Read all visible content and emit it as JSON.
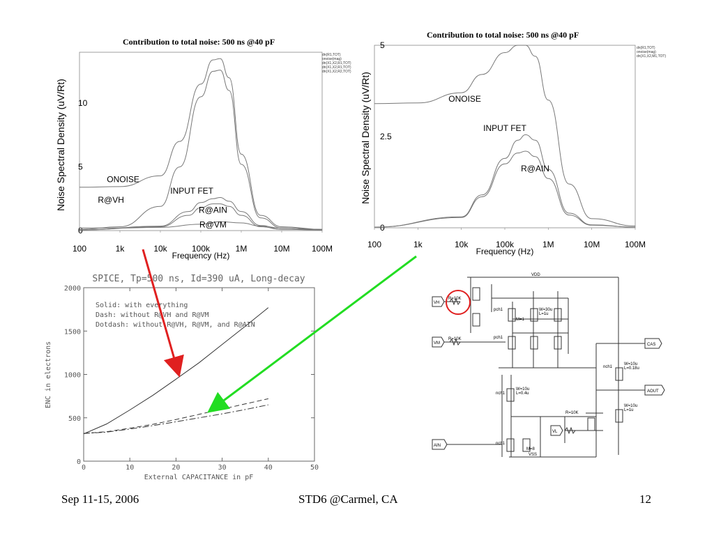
{
  "chart_data": [
    {
      "type": "line",
      "title": "Contribution to total noise: 500 ns @40 pF",
      "xlabel": "Frequency (Hz)",
      "ylabel": "Noise Spectral Density (uV/Rt)",
      "x_scale": "log",
      "xlim": [
        100,
        100000000
      ],
      "ylim": [
        0,
        14
      ],
      "x_ticks": [
        "100",
        "1k",
        "10k",
        "100k",
        "1M",
        "10M",
        "100M"
      ],
      "y_ticks": [
        "0",
        "5",
        "10"
      ],
      "legend": [
        "dn(R1,TOT)",
        "onoise(mag)",
        "dn(X1,X2,R1,TOT)",
        "dn(X1,X2,R1,TOT)",
        "dn(X1,X2,R2,TOT)"
      ],
      "annotations": [
        "ONOISE",
        "R@VH",
        "INPUT FET",
        "R@AIN",
        "R@VM"
      ],
      "series": [
        {
          "label": "ONOISE",
          "x": [
            100,
            1000,
            10000,
            30000,
            100000,
            200000,
            300000,
            500000,
            1000000,
            3000000,
            10000000,
            100000000
          ],
          "y": [
            3.4,
            3.45,
            4.3,
            7.0,
            11.5,
            13.4,
            13.5,
            12.0,
            6.0,
            1.2,
            0.3,
            0.1
          ]
        },
        {
          "label": "R@VH",
          "x": [
            100,
            1000,
            10000,
            30000,
            100000,
            200000,
            300000,
            500000,
            1000000,
            3000000,
            10000000,
            100000000
          ],
          "y": [
            0.1,
            0.3,
            1.9,
            5.0,
            10.5,
            12.5,
            12.6,
            11.0,
            5.2,
            1.0,
            0.2,
            0.05
          ]
        },
        {
          "label": "INPUT FET",
          "x": [
            100,
            10000,
            50000,
            100000,
            200000,
            300000,
            500000,
            1000000,
            3000000,
            10000000,
            100000000
          ],
          "y": [
            0.05,
            0.35,
            1.5,
            2.2,
            2.5,
            2.6,
            2.3,
            1.5,
            0.4,
            0.1,
            0.05
          ]
        },
        {
          "label": "R@AIN",
          "x": [
            100,
            10000,
            50000,
            100000,
            200000,
            300000,
            500000,
            1000000,
            3000000,
            10000000,
            100000000
          ],
          "y": [
            0.05,
            0.3,
            1.2,
            1.8,
            2.1,
            2.1,
            1.9,
            1.2,
            0.3,
            0.1,
            0.05
          ]
        },
        {
          "label": "R@VM",
          "x": [
            100,
            1000,
            10000,
            100000,
            300000,
            1000000,
            3000000,
            10000000,
            100000000
          ],
          "y": [
            0.2,
            0.2,
            0.25,
            0.5,
            0.7,
            0.6,
            0.35,
            0.2,
            0.1
          ]
        }
      ]
    },
    {
      "type": "line",
      "title": "Contribution to total noise: 500 ns @40 pF",
      "xlabel": "Frequency (Hz)",
      "ylabel": "Noise Spectral Density (uV/Rt)",
      "x_scale": "log",
      "xlim": [
        100,
        100000000
      ],
      "ylim": [
        0,
        5
      ],
      "x_ticks": [
        "100",
        "1k",
        "10k",
        "100k",
        "1M",
        "10M",
        "100M"
      ],
      "y_ticks": [
        "0",
        "2.5",
        "5"
      ],
      "legend": [
        "dn(R1,TOT)",
        "onoise(mag)",
        "dn(X1,X2,M1,TOT)"
      ],
      "annotations": [
        "ONOISE",
        "INPUT FET",
        "R@AIN"
      ],
      "series": [
        {
          "label": "ONOISE",
          "x": [
            100,
            1000,
            10000,
            30000,
            100000,
            200000,
            300000,
            500000,
            1000000,
            3000000,
            10000000,
            100000000
          ],
          "y": [
            3.4,
            3.42,
            3.7,
            4.2,
            4.8,
            5.0,
            5.0,
            4.7,
            3.5,
            1.2,
            0.25,
            0.05
          ]
        },
        {
          "label": "INPUT FET",
          "x": [
            100,
            10000,
            30000,
            100000,
            200000,
            300000,
            500000,
            1000000,
            3000000,
            10000000,
            100000000
          ],
          "y": [
            0.02,
            0.3,
            0.9,
            1.9,
            2.4,
            2.55,
            2.4,
            1.6,
            0.4,
            0.08,
            0.02
          ]
        },
        {
          "label": "R@AIN",
          "x": [
            100,
            10000,
            30000,
            100000,
            200000,
            300000,
            500000,
            1000000,
            3000000,
            10000000,
            100000000
          ],
          "y": [
            0.02,
            0.28,
            0.85,
            1.75,
            2.05,
            2.1,
            1.95,
            1.35,
            0.35,
            0.07,
            0.02
          ]
        }
      ]
    },
    {
      "type": "line",
      "title": "SPICE, Tp=500 ns, Id=390 uA, Long-decay",
      "xlabel": "External CAPACITANCE in pF",
      "ylabel": "ENC in electrons",
      "xlim": [
        0,
        50
      ],
      "ylim": [
        0,
        2000
      ],
      "x_ticks": [
        "0",
        "10",
        "20",
        "30",
        "40",
        "50"
      ],
      "y_ticks": [
        "0",
        "500",
        "1000",
        "1500",
        "2000"
      ],
      "grid": false,
      "legend_text": [
        "Solid: with everything",
        "Dash: without R@VH and R@VM",
        "Dotdash: without R@VH, R@VM, and R@AIN"
      ],
      "series": [
        {
          "label": "Solid",
          "x": [
            0,
            5,
            10,
            15,
            20,
            25,
            30,
            35,
            40
          ],
          "y": [
            315,
            430,
            590,
            760,
            945,
            1135,
            1345,
            1555,
            1770
          ]
        },
        {
          "label": "Dash",
          "x": [
            0,
            5,
            10,
            15,
            20,
            25,
            30,
            35,
            40
          ],
          "y": [
            320,
            340,
            380,
            425,
            480,
            540,
            600,
            660,
            720
          ]
        },
        {
          "label": "Dotdash",
          "x": [
            0,
            5,
            10,
            15,
            20,
            25,
            30,
            35,
            40
          ],
          "y": [
            320,
            335,
            370,
            410,
            455,
            500,
            545,
            595,
            650
          ]
        }
      ]
    }
  ],
  "schematic": {
    "labels": [
      "VDD",
      "VSS",
      "VH",
      "VM",
      "VL",
      "AIN",
      "CAS",
      "AOUT",
      "R=10K",
      "R=10K",
      "R=10K",
      "pch1",
      "pch1",
      "nch1",
      "nch1",
      "nch1",
      "W=30u",
      "L=1u",
      "W=10u",
      "L=0.4u",
      "W=10u",
      "L=0.18u",
      "W=10u",
      "L=1u",
      "M=1",
      "M=8"
    ],
    "highlight_color": "#e02020"
  },
  "arrows": {
    "red": "#e02020",
    "green": "#22dd22"
  },
  "footer": {
    "left": "Sep 11-15, 2006",
    "center": "STD6 @Carmel, CA",
    "right": "12"
  }
}
